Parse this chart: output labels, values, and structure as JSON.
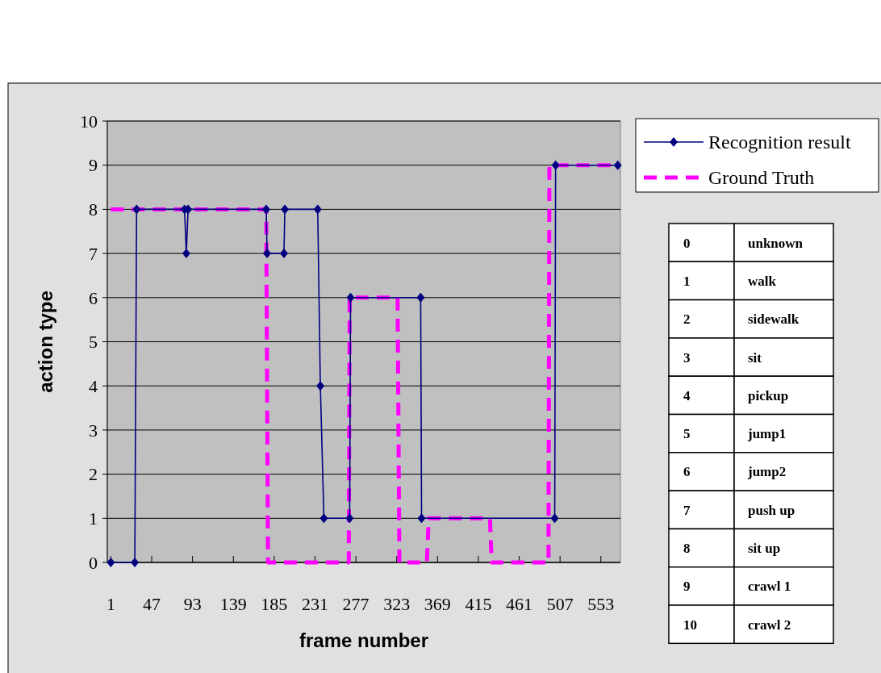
{
  "chart_data": {
    "type": "line",
    "xlabel": "frame number",
    "ylabel": "action type",
    "xlim": [
      -3,
      575
    ],
    "xticks": [
      1,
      47,
      93,
      139,
      185,
      231,
      277,
      323,
      369,
      415,
      461,
      507,
      553
    ],
    "ylim": [
      0,
      10
    ],
    "yticks": [
      0,
      1,
      2,
      3,
      4,
      5,
      6,
      7,
      8,
      9,
      10
    ],
    "grid": "y",
    "legend": "right",
    "series": [
      {
        "name": "Recognition result",
        "color": "#000080",
        "marker": "diamond",
        "line_style": "solid",
        "x": [
          1,
          28,
          30,
          84,
          86,
          88,
          176,
          177,
          196,
          197,
          234,
          237,
          241,
          270,
          271,
          350,
          351,
          501,
          502,
          572
        ],
        "values": [
          0,
          0,
          8,
          8,
          7,
          8,
          8,
          7,
          7,
          8,
          8,
          4,
          1,
          1,
          6,
          6,
          1,
          1,
          9,
          9
        ]
      },
      {
        "name": "Ground Truth",
        "color": "#ff00ff",
        "marker": "none",
        "line_style": "dashed",
        "x": [
          1,
          176,
          178,
          269,
          270,
          324,
          326,
          357,
          359,
          428,
          430,
          494,
          495,
          572
        ],
        "values": [
          8,
          8,
          0,
          0,
          6,
          6,
          0,
          0,
          1,
          1,
          0,
          0,
          9,
          9
        ]
      }
    ],
    "annotations": [
      "0",
      "unknown",
      "1",
      "walk",
      "2",
      "sidewalk",
      "3",
      "sit",
      "4",
      "pickup",
      "5",
      "jump1",
      "6",
      "jump2",
      "7",
      "push up",
      "8",
      "sit up",
      "9",
      "crawl 1",
      "10",
      "crawl 2"
    ]
  }
}
